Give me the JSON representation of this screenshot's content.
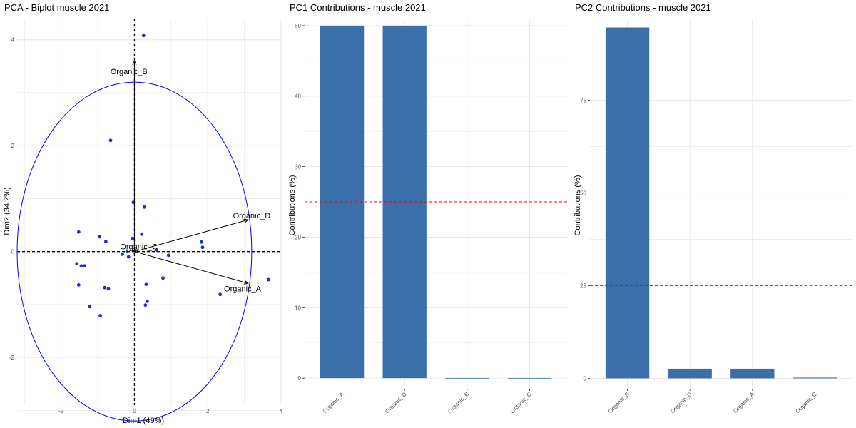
{
  "chart_data": [
    {
      "type": "scatter",
      "title": "PCA - Biplot muscle 2021",
      "xlabel": "Dim1 (49%)",
      "ylabel": "Dim2 (34.2%)",
      "xlim": [
        -3.2,
        4.0
      ],
      "ylim": [
        -2.9,
        4.4
      ],
      "xticks": [
        -2,
        0,
        2,
        4
      ],
      "yticks": [
        -2,
        0,
        2,
        4
      ],
      "grid": true,
      "point_color": "#1f2bdb",
      "circle_color": "#0000ff",
      "circle": {
        "cx": 0,
        "cy": 0,
        "r": 3.2
      },
      "points": [
        {
          "x": 0.25,
          "y": 4.08
        },
        {
          "x": -0.65,
          "y": 2.1
        },
        {
          "x": -0.03,
          "y": 0.93
        },
        {
          "x": 0.27,
          "y": 0.84
        },
        {
          "x": 0.2,
          "y": 0.33
        },
        {
          "x": -0.05,
          "y": 0.25
        },
        {
          "x": -0.95,
          "y": 0.28
        },
        {
          "x": -0.78,
          "y": 0.19
        },
        {
          "x": -1.52,
          "y": 0.37
        },
        {
          "x": 1.83,
          "y": 0.18
        },
        {
          "x": 1.86,
          "y": 0.08
        },
        {
          "x": 0.6,
          "y": 0.03
        },
        {
          "x": 0.93,
          "y": -0.07
        },
        {
          "x": -0.33,
          "y": -0.05
        },
        {
          "x": -0.16,
          "y": -0.1
        },
        {
          "x": -0.2,
          "y": 0.0
        },
        {
          "x": -1.57,
          "y": -0.23
        },
        {
          "x": -1.45,
          "y": -0.27
        },
        {
          "x": -1.36,
          "y": -0.27
        },
        {
          "x": 0.78,
          "y": -0.5
        },
        {
          "x": -1.52,
          "y": -0.63
        },
        {
          "x": -0.81,
          "y": -0.68
        },
        {
          "x": -0.71,
          "y": -0.7
        },
        {
          "x": 0.32,
          "y": -0.62
        },
        {
          "x": 0.35,
          "y": -0.94
        },
        {
          "x": 0.3,
          "y": -1.01
        },
        {
          "x": -1.22,
          "y": -1.04
        },
        {
          "x": -0.93,
          "y": -1.21
        },
        {
          "x": 2.34,
          "y": -0.81
        },
        {
          "x": 3.66,
          "y": -0.53
        }
      ],
      "variables": [
        {
          "name": "Organic_B",
          "x": 0.0,
          "y": 3.6,
          "lx": -0.15,
          "ly": 3.4
        },
        {
          "name": "Organic_D",
          "x": 3.1,
          "y": 0.6,
          "lx": 3.2,
          "ly": 0.68
        },
        {
          "name": "Organic_A",
          "x": 3.1,
          "y": -0.6,
          "lx": 2.95,
          "ly": -0.7
        },
        {
          "name": "Organic_C",
          "x": 0.05,
          "y": 0.02,
          "lx": 0.12,
          "ly": 0.1
        }
      ]
    },
    {
      "type": "bar",
      "title": "PC1 Contributions - muscle 2021",
      "xlabel": "",
      "ylabel": "Contributions (%)",
      "categories": [
        "Organic_A",
        "Organic_D",
        "Organic_B",
        "Organic_C"
      ],
      "values": [
        50,
        50,
        0.02,
        0.02
      ],
      "ylim": [
        -1.5,
        51
      ],
      "yticks": [
        0,
        10,
        20,
        30,
        40,
        50
      ],
      "reference_line": 25,
      "bar_color": "#3a6fa9",
      "reference_color": "#ff0000",
      "grid": true
    },
    {
      "type": "bar",
      "title": "PC2 Contributions - muscle 2021",
      "xlabel": "",
      "ylabel": "Contributions (%)",
      "categories": [
        "Organic_B",
        "Organic_D",
        "Organic_A",
        "Organic_C"
      ],
      "values": [
        94.6,
        2.6,
        2.6,
        0.2
      ],
      "ylim": [
        -2.8,
        97
      ],
      "yticks": [
        0,
        25,
        50,
        75
      ],
      "reference_line": 25,
      "bar_color": "#3a6fa9",
      "reference_color": "#ff0000",
      "grid": true
    }
  ]
}
